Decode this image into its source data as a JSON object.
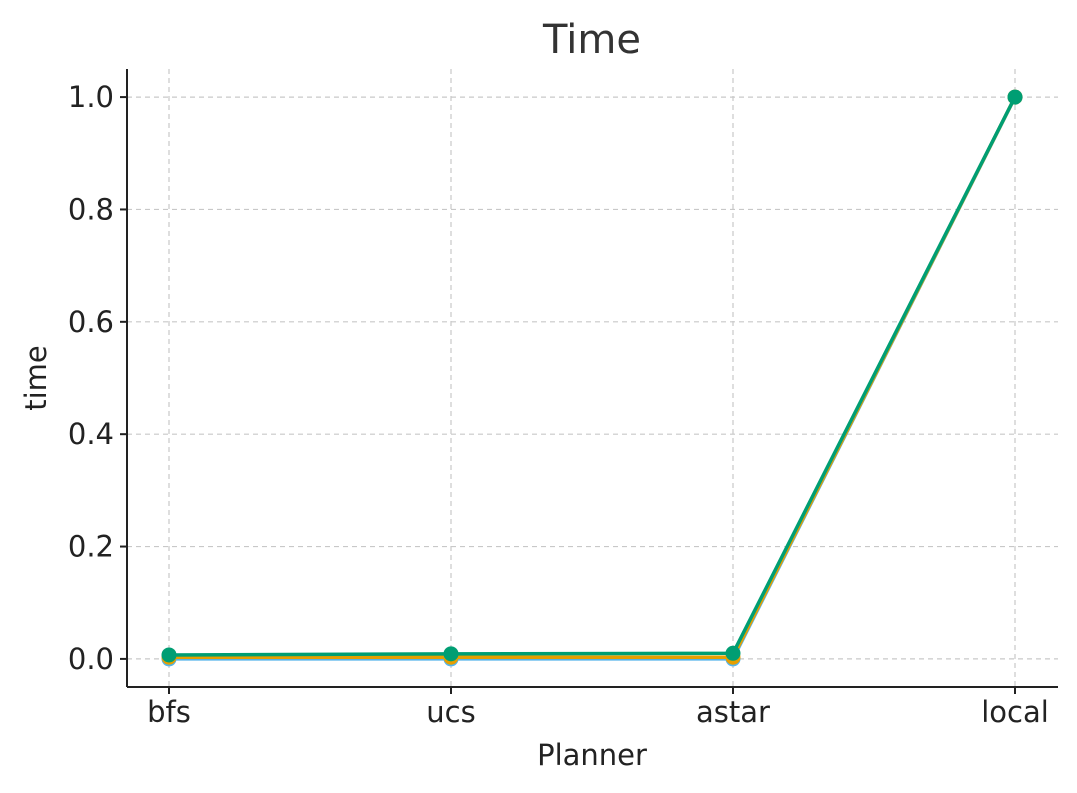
{
  "chart_data": {
    "type": "line",
    "title": "Time",
    "xlabel": "Planner",
    "ylabel": "time",
    "categories": [
      "bfs",
      "ucs",
      "astar",
      "local"
    ],
    "ylim": [
      -0.05,
      1.05
    ],
    "yticks": [
      0.0,
      0.2,
      0.4,
      0.6,
      0.8,
      1.0
    ],
    "ytick_labels": [
      "0.0",
      "0.2",
      "0.4",
      "0.6",
      "0.8",
      "1.0"
    ],
    "grid": true,
    "series": [
      {
        "values": [
          0.0,
          0.0,
          0.0,
          1.0
        ],
        "color": "#56B4E9"
      },
      {
        "values": [
          0.003,
          0.003,
          0.003,
          1.0
        ],
        "color": "#E69F00"
      },
      {
        "values": [
          0.007,
          0.009,
          0.01,
          1.0
        ],
        "color": "#009E73"
      }
    ]
  }
}
